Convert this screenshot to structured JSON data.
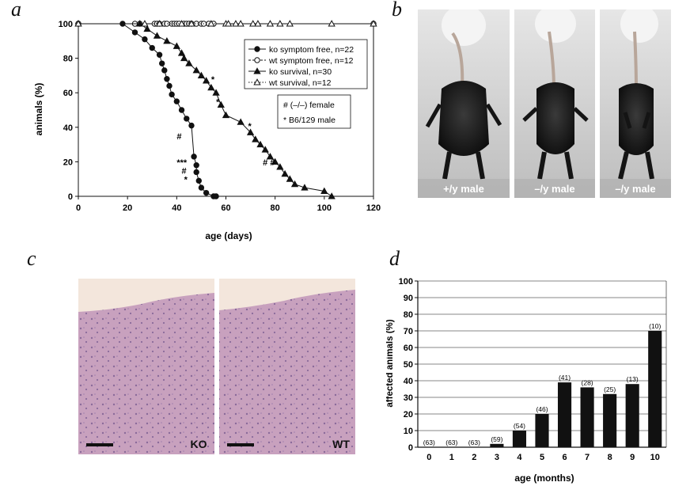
{
  "panels": {
    "a": "a",
    "b": "b",
    "c": "c",
    "d": "d"
  },
  "chart_data": [
    {
      "panel": "a",
      "type": "line",
      "xlabel": "age (days)",
      "ylabel": "animals (%)",
      "xlim": [
        0,
        120
      ],
      "ylim": [
        0,
        100
      ],
      "xticks": [
        0,
        20,
        40,
        60,
        80,
        100,
        120
      ],
      "yticks": [
        0,
        20,
        40,
        60,
        80,
        100
      ],
      "legend_position": "top-right",
      "series": [
        {
          "name": "ko symptom free, n=22",
          "marker": "filled-circle",
          "line": "solid",
          "points": [
            [
              0,
              100
            ],
            [
              18,
              100
            ],
            [
              23,
              95
            ],
            [
              27,
              91
            ],
            [
              30,
              86
            ],
            [
              33,
              82
            ],
            [
              34,
              77
            ],
            [
              35,
              73
            ],
            [
              36,
              68
            ],
            [
              37,
              64
            ],
            [
              38,
              59
            ],
            [
              40,
              55
            ],
            [
              42,
              50
            ],
            [
              44,
              45
            ],
            [
              46,
              41
            ],
            [
              47,
              23
            ],
            [
              48,
              18
            ],
            [
              48,
              14
            ],
            [
              49,
              9
            ],
            [
              50,
              5
            ],
            [
              52,
              2
            ],
            [
              55,
              0
            ],
            [
              56,
              0
            ]
          ]
        },
        {
          "name": "wt symptom free, n=12",
          "marker": "open-circle",
          "line": "dashed",
          "points": [
            [
              0,
              100
            ],
            [
              23,
              100
            ],
            [
              25,
              100
            ],
            [
              31,
              100
            ],
            [
              32,
              100
            ],
            [
              33,
              100
            ],
            [
              35,
              100
            ],
            [
              36,
              100
            ],
            [
              38,
              100
            ],
            [
              39,
              100
            ],
            [
              40,
              100
            ],
            [
              41,
              100
            ],
            [
              43,
              100
            ],
            [
              44,
              100
            ],
            [
              45,
              100
            ],
            [
              46,
              100
            ],
            [
              48,
              100
            ],
            [
              50,
              100
            ],
            [
              51,
              100
            ],
            [
              53,
              100
            ],
            [
              55,
              100
            ],
            [
              120,
              100
            ]
          ]
        },
        {
          "name": "ko survival, n=30",
          "marker": "filled-triangle",
          "line": "solid",
          "points": [
            [
              0,
              100
            ],
            [
              25,
              100
            ],
            [
              28,
              97
            ],
            [
              32,
              93
            ],
            [
              36,
              90
            ],
            [
              40,
              87
            ],
            [
              42,
              83
            ],
            [
              43,
              80
            ],
            [
              45,
              77
            ],
            [
              48,
              73
            ],
            [
              50,
              70
            ],
            [
              52,
              67
            ],
            [
              54,
              63
            ],
            [
              56,
              60
            ],
            [
              58,
              53
            ],
            [
              60,
              47
            ],
            [
              66,
              43
            ],
            [
              70,
              37
            ],
            [
              72,
              33
            ],
            [
              74,
              30
            ],
            [
              76,
              27
            ],
            [
              78,
              23
            ],
            [
              80,
              20
            ],
            [
              82,
              17
            ],
            [
              84,
              13
            ],
            [
              86,
              10
            ],
            [
              88,
              7
            ],
            [
              92,
              5
            ],
            [
              100,
              3
            ],
            [
              103,
              0
            ]
          ]
        },
        {
          "name": "wt survival, n=12",
          "marker": "open-triangle",
          "line": "dotted",
          "points": [
            [
              0,
              100
            ],
            [
              27,
              100
            ],
            [
              33,
              100
            ],
            [
              42,
              100
            ],
            [
              46,
              100
            ],
            [
              54,
              100
            ],
            [
              60,
              100
            ],
            [
              61,
              100
            ],
            [
              64,
              100
            ],
            [
              66,
              100
            ],
            [
              71,
              100
            ],
            [
              73,
              100
            ],
            [
              78,
              100
            ],
            [
              82,
              100
            ],
            [
              86,
              100
            ],
            [
              103,
              100
            ],
            [
              120,
              100
            ]
          ]
        }
      ],
      "key_box": [
        "# (–/–) female",
        "* B6/129 male"
      ],
      "annotations": [
        {
          "text": "*",
          "x": 54,
          "y": 66
        },
        {
          "text": "*",
          "x": 56,
          "y": 53
        },
        {
          "text": "*",
          "x": 69,
          "y": 39
        },
        {
          "text": "# #",
          "x": 75,
          "y": 18
        },
        {
          "text": "#",
          "x": 40,
          "y": 33
        },
        {
          "text": "***",
          "x": 40,
          "y": 18
        },
        {
          "text": "#",
          "x": 42,
          "y": 13
        },
        {
          "text": "*",
          "x": 43,
          "y": 8
        }
      ]
    },
    {
      "panel": "d",
      "type": "bar",
      "xlabel": "age (months)",
      "ylabel": "affected animals (%)",
      "ylim": [
        0,
        100
      ],
      "yticks": [
        0,
        10,
        20,
        30,
        40,
        50,
        60,
        70,
        80,
        90,
        100
      ],
      "grid": true,
      "categories": [
        "0",
        "1",
        "2",
        "3",
        "4",
        "5",
        "6",
        "7",
        "8",
        "9",
        "10"
      ],
      "values": [
        0,
        0,
        0,
        2,
        10,
        20,
        39,
        36,
        32,
        38,
        70
      ],
      "data_labels": [
        "(63)",
        "(63)",
        "(63)",
        "(59)",
        "(54)",
        "(46)",
        "(41)",
        "(28)",
        "(25)",
        "(13)",
        "(10)"
      ]
    }
  ],
  "photos_b": [
    {
      "caption": "+/y male"
    },
    {
      "caption": "–/y male"
    },
    {
      "caption": "–/y male"
    }
  ],
  "photos_c": [
    {
      "caption": "KO"
    },
    {
      "caption": "WT"
    }
  ],
  "colors": {
    "ink": "#111111",
    "photo_bg": "#d4d4d4",
    "tissue": "#c9a0bd",
    "tissue_dark": "#a87aa0"
  }
}
